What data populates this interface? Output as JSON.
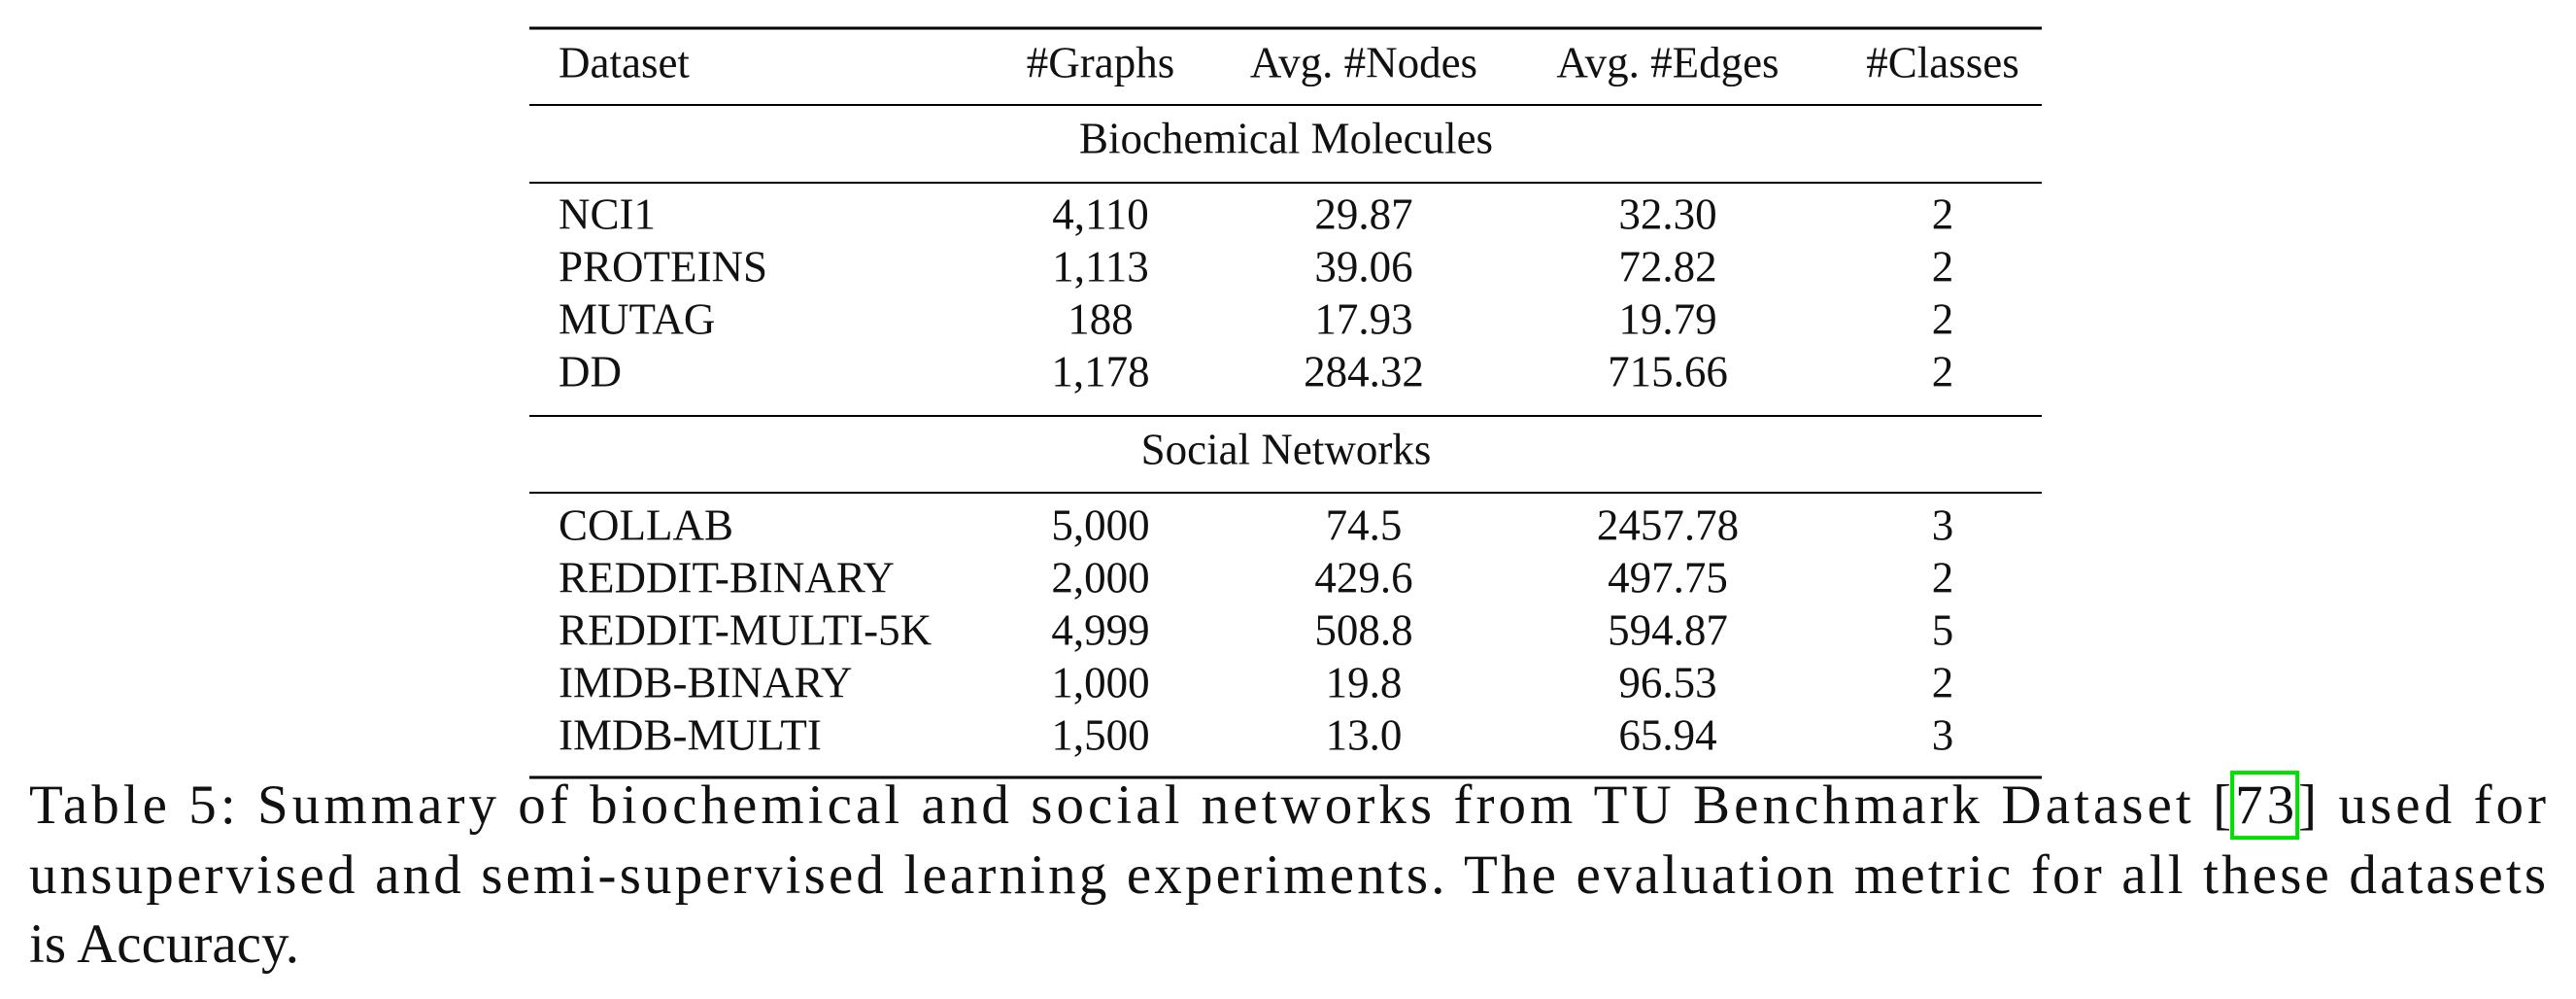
{
  "table": {
    "columns": [
      "Dataset",
      "#Graphs",
      "Avg. #Nodes",
      "Avg. #Edges",
      "#Classes"
    ],
    "groups": [
      {
        "title": "Biochemical Molecules",
        "rows": [
          [
            "NCI1",
            "4,110",
            "29.87",
            "32.30",
            "2"
          ],
          [
            "PROTEINS",
            "1,113",
            "39.06",
            "72.82",
            "2"
          ],
          [
            "MUTAG",
            "188",
            "17.93",
            "19.79",
            "2"
          ],
          [
            "DD",
            "1,178",
            "284.32",
            "715.66",
            "2"
          ]
        ]
      },
      {
        "title": "Social Networks",
        "rows": [
          [
            "COLLAB",
            "5,000",
            "74.5",
            "2457.78",
            "3"
          ],
          [
            "REDDIT-BINARY",
            "2,000",
            "429.6",
            "497.75",
            "2"
          ],
          [
            "REDDIT-MULTI-5K",
            "4,999",
            "508.8",
            "594.87",
            "5"
          ],
          [
            "IMDB-BINARY",
            "1,000",
            "19.8",
            "96.53",
            "2"
          ],
          [
            "IMDB-MULTI",
            "1,500",
            "13.0",
            "65.94",
            "3"
          ]
        ]
      }
    ]
  },
  "caption": {
    "line_1": [
      "Table 5: Summary of biochemical and social networks from TU Benchmark Dataset [",
      "73",
      "] used for"
    ],
    "line_2": "unsupervised and semi-supervised learning experiments. The evaluation metric for all these datasets",
    "line_3": "is Accuracy."
  }
}
